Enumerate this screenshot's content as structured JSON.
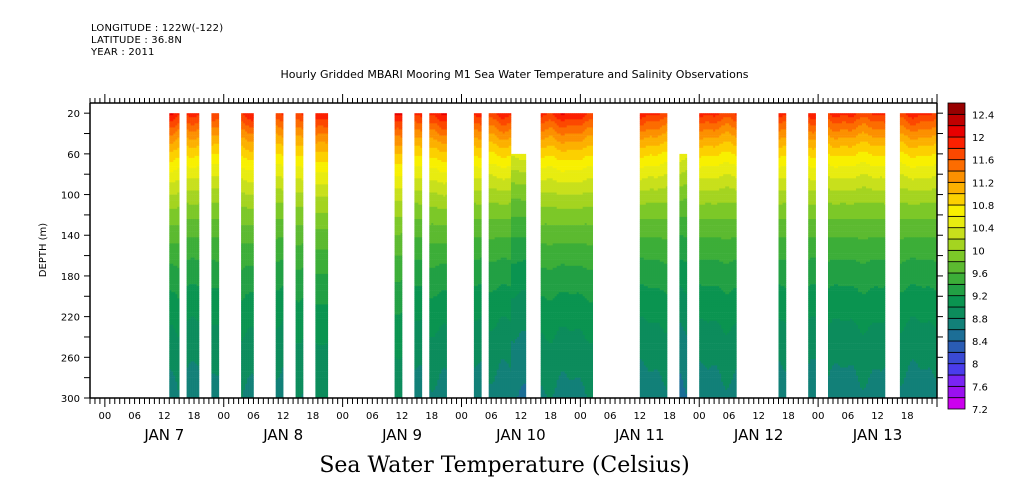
{
  "header": {
    "longitude": "LONGITUDE : 122W(-122)",
    "latitude": "LATITUDE : 36.8N",
    "year": "YEAR : 2011"
  },
  "chart_data": {
    "type": "heatmap",
    "title": "Hourly Gridded MBARI Mooring M1 Sea Water Temperature and Salinity Observations",
    "xlabel": "Sea Water Temperature (Celsius)",
    "ylabel": "DEPTH (m)",
    "ylim": [
      300,
      20
    ],
    "y_axis_top": 10,
    "yticks": [
      20,
      60,
      100,
      140,
      180,
      220,
      260,
      300
    ],
    "x_start_hour": -3,
    "x_end_hour": 168,
    "hour_tick_labels": [
      "00",
      "06",
      "12",
      "18"
    ],
    "day_labels": [
      "JAN 7",
      "JAN 8",
      "JAN 9",
      "JAN 10",
      "JAN 11",
      "JAN 12",
      "JAN 13"
    ],
    "colorbar": {
      "levels": [
        7.2,
        7.4,
        7.6,
        7.8,
        8,
        8.2,
        8.4,
        8.6,
        8.8,
        9,
        9.2,
        9.4,
        9.6,
        9.8,
        10,
        10.2,
        10.4,
        10.6,
        10.8,
        11,
        11.2,
        11.4,
        11.6,
        11.8,
        12,
        12.2,
        12.4
      ],
      "tick_labels": [
        "12.4",
        "12",
        "11.6",
        "11.2",
        "10.8",
        "10.4",
        "10",
        "9.6",
        "9.2",
        "8.8",
        "8.4",
        "8",
        "7.6",
        "7.2"
      ],
      "colors": [
        "#cc00ee",
        "#9a10f0",
        "#7a24f4",
        "#4a3cec",
        "#3a4ad4",
        "#2a5cb4",
        "#1c6e96",
        "#128078",
        "#0c8c5c",
        "#0a9450",
        "#22a044",
        "#3cae38",
        "#5cba30",
        "#7cc828",
        "#a4d420",
        "#c8e01c",
        "#e8ec10",
        "#f8f000",
        "#fcd000",
        "#fcb000",
        "#fc9000",
        "#fc6c00",
        "#fc4800",
        "#fc2000",
        "#e80000",
        "#c00000",
        "#980000"
      ]
    },
    "series": [
      {
        "start_hour": 13,
        "end_hour": 15,
        "top_depth": 20,
        "surface_temp": 11.9
      },
      {
        "start_hour": 16.5,
        "end_hour": 19,
        "top_depth": 20,
        "surface_temp": 11.8
      },
      {
        "start_hour": 21.5,
        "end_hour": 23,
        "top_depth": 20,
        "surface_temp": 11.8
      },
      {
        "start_hour": 27.5,
        "end_hour": 30,
        "top_depth": 20,
        "surface_temp": 11.9
      },
      {
        "start_hour": 34.5,
        "end_hour": 36,
        "top_depth": 20,
        "surface_temp": 11.8
      },
      {
        "start_hour": 38.5,
        "end_hour": 40,
        "top_depth": 20,
        "surface_temp": 11.9
      },
      {
        "start_hour": 42.5,
        "end_hour": 45,
        "top_depth": 20,
        "surface_temp": 12.0
      },
      {
        "start_hour": 58.5,
        "end_hour": 60,
        "top_depth": 20,
        "surface_temp": 12.1
      },
      {
        "start_hour": 62.5,
        "end_hour": 64,
        "top_depth": 20,
        "surface_temp": 11.8
      },
      {
        "start_hour": 65.5,
        "end_hour": 69,
        "top_depth": 20,
        "surface_temp": 11.9
      },
      {
        "start_hour": 74.5,
        "end_hour": 76,
        "top_depth": 20,
        "surface_temp": 11.8
      },
      {
        "start_hour": 77.5,
        "end_hour": 82,
        "top_depth": 20,
        "surface_temp": 11.8
      },
      {
        "start_hour": 82,
        "end_hour": 85,
        "top_depth": 60,
        "surface_temp": 11.4
      },
      {
        "start_hour": 88,
        "end_hour": 98.5,
        "top_depth": 20,
        "surface_temp": 11.9
      },
      {
        "start_hour": 108,
        "end_hour": 113.5,
        "top_depth": 20,
        "surface_temp": 11.8
      },
      {
        "start_hour": 116,
        "end_hour": 117.5,
        "top_depth": 60,
        "surface_temp": 11.4
      },
      {
        "start_hour": 120,
        "end_hour": 127.5,
        "top_depth": 20,
        "surface_temp": 11.8
      },
      {
        "start_hour": 136,
        "end_hour": 137.5,
        "top_depth": 20,
        "surface_temp": 11.8
      },
      {
        "start_hour": 142,
        "end_hour": 143.5,
        "top_depth": 20,
        "surface_temp": 11.8
      },
      {
        "start_hour": 146,
        "end_hour": 157.5,
        "top_depth": 20,
        "surface_temp": 11.8
      },
      {
        "start_hour": 160.5,
        "end_hour": 168,
        "top_depth": 20,
        "surface_temp": 11.8
      }
    ]
  }
}
